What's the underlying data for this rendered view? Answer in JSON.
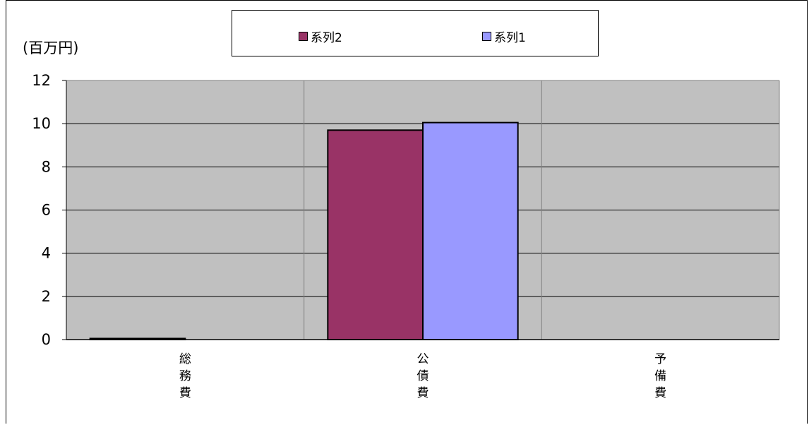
{
  "chart_data": {
    "type": "bar",
    "unit_label": "(百万円)",
    "categories": [
      "総務費",
      "公債費",
      "予備費"
    ],
    "series": [
      {
        "name": "系列2",
        "color": "#993366",
        "values": [
          0.05,
          9.7,
          0
        ]
      },
      {
        "name": "系列1",
        "color": "#9999ff",
        "values": [
          0,
          10.05,
          0
        ]
      }
    ],
    "ylim": [
      0,
      12
    ],
    "yticks": [
      "0",
      "2",
      "4",
      "6",
      "8",
      "10",
      "12"
    ],
    "plot_background": "#c0c0c0",
    "grid": true,
    "legend_position": "top"
  }
}
